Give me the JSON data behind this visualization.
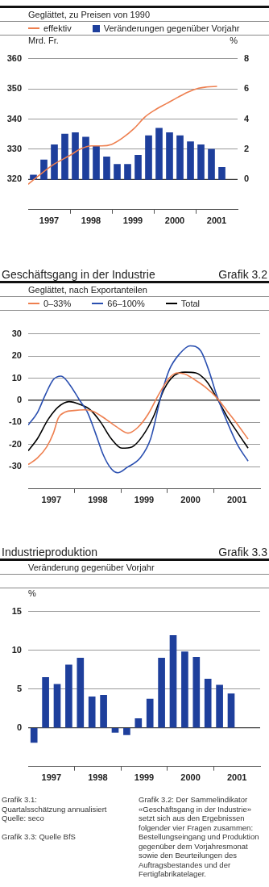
{
  "chart_data": [
    {
      "type": "bar",
      "subtitle": "Geglättet, zu Preisen von 1990",
      "ylabel": "Mrd. Fr.",
      "y2label": "%",
      "x": [
        1997.125,
        1997.375,
        1997.625,
        1997.875,
        1998.125,
        1998.375,
        1998.625,
        1998.875,
        1999.125,
        1999.375,
        1999.625,
        1999.875,
        2000.125,
        2000.375,
        2000.625,
        2000.875,
        2001.125,
        2001.375,
        2001.625
      ],
      "series": [
        {
          "name": "effektiv",
          "type": "line",
          "color": "#ee7f4f",
          "axis": "y",
          "x": [
            1997,
            1997.22,
            1997.61,
            1997.99,
            1998.25,
            1998.51,
            1998.76,
            1998.99,
            1999.24,
            1999.53,
            1999.79,
            2000.05,
            2000.3,
            2000.56,
            2000.81,
            2001.07,
            2001.26,
            2001.51
          ],
          "values": [
            318.4,
            320.9,
            325,
            327.9,
            330.1,
            331.1,
            331.1,
            331.6,
            333.6,
            336.9,
            340.7,
            343.2,
            345.1,
            347.1,
            348.9,
            350.2,
            350.6,
            350.8
          ]
        },
        {
          "name": "Veränderungen gegenüber Vorjahr",
          "type": "bar",
          "color": "#1e3f9c",
          "axis": "y2",
          "values": [
            0.3,
            1.3,
            2.3,
            3.0,
            3.1,
            2.8,
            2.2,
            1.5,
            1.0,
            1.0,
            1.6,
            2.9,
            3.4,
            3.1,
            2.9,
            2.5,
            2.3,
            2.0,
            0.8
          ]
        }
      ],
      "xlim": [
        1997,
        2002
      ],
      "xticks": [
        {
          "value": 1997.5,
          "label": "1997"
        },
        {
          "value": 1998,
          "label": null
        },
        {
          "value": 1998.5,
          "label": "1998"
        },
        {
          "value": 1999,
          "label": null
        },
        {
          "value": 1999.5,
          "label": "1999"
        },
        {
          "value": 2000,
          "label": null
        },
        {
          "value": 2000.5,
          "label": "2000"
        },
        {
          "value": 2001,
          "label": null
        },
        {
          "value": 2001.5,
          "label": "2001"
        }
      ],
      "ylim": [
        310,
        360
      ],
      "yticks": [
        320,
        330,
        340,
        350,
        360
      ],
      "y2lim": [
        -2,
        8
      ],
      "y2ticks": [
        0,
        2,
        4,
        6,
        8
      ],
      "ref_lines": [
        {
          "axis": "y2",
          "value": 0,
          "color": "#333333"
        }
      ],
      "grid": "y",
      "legend": "top",
      "annotations": [
        "Grafik 3.1:\nQuartalsschätzung annualisiert\nQuelle: seco"
      ]
    },
    {
      "type": "line",
      "title": "Geschäftsgang in der Industrie",
      "subtitle": "Geglättet, nach Exportanteilen",
      "series": [
        {
          "name": "0–33%",
          "color": "#ee7f4f",
          "x": [
            1997,
            1997.2,
            1997.4,
            1997.54,
            1997.65,
            1997.8,
            1997.99,
            1998.22,
            1998.39,
            1998.68,
            1998.9,
            1999.15,
            1999.36,
            1999.59,
            1999.81,
            2000.04,
            2000.21,
            2000.38,
            2000.61,
            2000.84,
            2001.06,
            2001.29,
            2001.52,
            2001.74
          ],
          "values": [
            -29,
            -26,
            -21,
            -15,
            -8,
            -5.3,
            -4.6,
            -4.3,
            -4.9,
            -8.6,
            -11.9,
            -14.8,
            -12.3,
            -6.1,
            2.5,
            10,
            12.4,
            11.8,
            9,
            5.6,
            1.3,
            -4.9,
            -11.1,
            -17.5
          ]
        },
        {
          "name": "66–100%",
          "color": "#2a4fb0",
          "x": [
            1997,
            1997.2,
            1997.37,
            1997.54,
            1997.71,
            1997.88,
            1998.11,
            1998.28,
            1998.45,
            1998.62,
            1998.79,
            1998.93,
            1999.13,
            1999.42,
            1999.64,
            1999.87,
            2000.04,
            2000.27,
            2000.49,
            2000.72,
            2000.89,
            2001.06,
            2001.29,
            2001.52,
            2001.74
          ],
          "values": [
            -11.1,
            -5.5,
            2.5,
            9.3,
            10.9,
            7.5,
            0,
            -5.5,
            -14.8,
            -24.7,
            -30.9,
            -32.7,
            -30.3,
            -25.9,
            -17.3,
            2.5,
            13.7,
            21.1,
            24.6,
            22.3,
            13.7,
            2.5,
            -9.8,
            -20.4,
            -27.4
          ]
        },
        {
          "name": "Total",
          "color": "#000000",
          "x": [
            1997,
            1997.2,
            1997.43,
            1997.65,
            1997.88,
            1998.11,
            1998.34,
            1998.56,
            1998.79,
            1999.02,
            1999.24,
            1999.47,
            1999.7,
            1999.93,
            2000.15,
            2000.38,
            2000.61,
            2000.84,
            2001.06,
            2001.29,
            2001.52,
            2001.74
          ],
          "values": [
            -22.8,
            -17.3,
            -8.6,
            -3,
            -0.6,
            -1.8,
            -4.3,
            -9.8,
            -17.3,
            -21.6,
            -21,
            -16,
            -7.4,
            5,
            11.2,
            12.7,
            12.4,
            8.7,
            1.3,
            -7.4,
            -14.8,
            -21.6
          ]
        }
      ],
      "xlim": [
        1997,
        2002
      ],
      "xticks": [
        {
          "value": 1997.5,
          "label": "1997"
        },
        {
          "value": 1998,
          "label": null
        },
        {
          "value": 1998.5,
          "label": "1998"
        },
        {
          "value": 1999,
          "label": null
        },
        {
          "value": 1999.5,
          "label": "1999"
        },
        {
          "value": 2000,
          "label": null
        },
        {
          "value": 2000.5,
          "label": "2000"
        },
        {
          "value": 2001,
          "label": null
        },
        {
          "value": 2001.5,
          "label": "2001"
        }
      ],
      "ylim": [
        -40,
        30
      ],
      "yticks": [
        -30,
        -20,
        -10,
        0,
        10,
        20,
        30
      ],
      "ref_lines": [
        {
          "axis": "y",
          "value": 0,
          "color": "#333333"
        }
      ],
      "grid": "y",
      "legend": "top",
      "annotations": [
        "Grafik 3.2",
        "Grafik 3.2: Der Sammelindikator «Geschäftsgang in der Industrie» setzt sich aus den Ergebnissen folgender vier Fragen zusammen: Bestellungseingang und Produktion gegenüber dem Vorjahresmonat sowie den Beurteilungen des Auftragsbestandes und der Fertigfabrikatelager."
      ]
    },
    {
      "type": "bar",
      "title": "Industrieproduktion",
      "subtitle": "Veränderung gegenüber Vorjahr",
      "ylabel": "%",
      "x": [
        1997.125,
        1997.375,
        1997.625,
        1997.875,
        1998.125,
        1998.375,
        1998.625,
        1998.875,
        1999.125,
        1999.375,
        1999.625,
        1999.875,
        2000.125,
        2000.375,
        2000.625,
        2000.875,
        2001.125,
        2001.375
      ],
      "values": [
        -1.9,
        6.5,
        5.6,
        8.1,
        9.0,
        4.0,
        4.2,
        -0.6,
        -0.9,
        1.2,
        3.7,
        9.0,
        11.9,
        9.8,
        9.1,
        6.3,
        5.5,
        4.4
      ],
      "color": "#1e3f9c",
      "xlim": [
        1997,
        2002
      ],
      "xticks": [
        {
          "value": 1997.5,
          "label": "1997"
        },
        {
          "value": 1998,
          "label": null
        },
        {
          "value": 1998.5,
          "label": "1998"
        },
        {
          "value": 1999,
          "label": null
        },
        {
          "value": 1999.5,
          "label": "1999"
        },
        {
          "value": 2000,
          "label": null
        },
        {
          "value": 2000.5,
          "label": "2000"
        },
        {
          "value": 2001,
          "label": null
        },
        {
          "value": 2001.5,
          "label": "2001"
        }
      ],
      "ylim": [
        -5,
        15
      ],
      "yticks": [
        0,
        5,
        10,
        15
      ],
      "ref_lines": [
        {
          "axis": "y",
          "value": 0,
          "color": "#333333"
        }
      ],
      "grid": "y",
      "annotations": [
        "Grafik 3.3",
        "Grafik 3.3: Quelle BfS"
      ]
    }
  ]
}
